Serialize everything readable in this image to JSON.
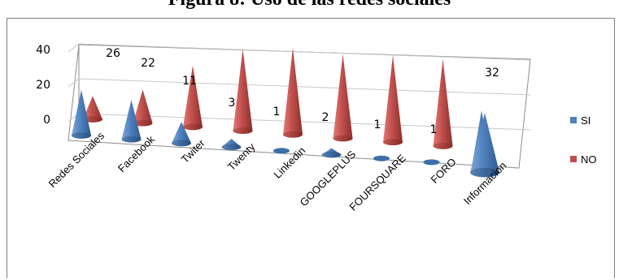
{
  "title": "Figura 8: Uso de las redes sociales",
  "chart_data": {
    "type": "bar",
    "shape": "3d-cone",
    "categories": [
      "Redes Sociales",
      "Facebook",
      "Twiter",
      "Twenty",
      "Linkedin",
      "GOOGLEPLUS",
      "FOURSQUARE",
      "FORO",
      "Informacion"
    ],
    "series": [
      {
        "name": "SI",
        "color": "#4f81bd",
        "values": [
          26,
          22,
          11,
          3,
          1,
          2,
          1,
          1,
          32
        ]
      },
      {
        "name": "NO",
        "color": "#c0504d",
        "values": [
          6,
          10,
          21,
          29,
          31,
          30,
          31,
          31,
          0
        ]
      }
    ],
    "data_labels": [
      "26",
      "22",
      "11",
      "3",
      "1",
      "2",
      "1",
      "1",
      "32"
    ],
    "yticks": [
      "0",
      "20",
      "40"
    ],
    "ylim": [
      0,
      40
    ],
    "legend_position": "right",
    "grid": true
  }
}
